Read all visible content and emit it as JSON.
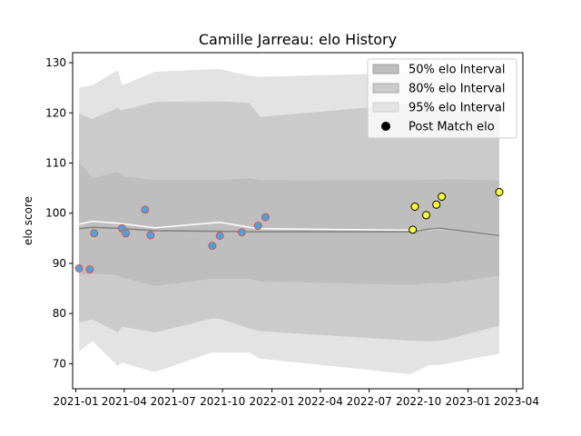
{
  "chart_data": {
    "type": "line",
    "title": "Camille Jarreau: elo History",
    "xlabel": "",
    "ylabel": "elo score",
    "xlim": [
      "2020-12-26",
      "2023-04-13"
    ],
    "ylim": [
      65,
      132
    ],
    "x_ticks": [
      "2021-01",
      "2021-04",
      "2021-07",
      "2021-10",
      "2022-01",
      "2022-04",
      "2022-07",
      "2022-10",
      "2023-01",
      "2023-04"
    ],
    "y_ticks": [
      70,
      80,
      90,
      100,
      110,
      120,
      130
    ],
    "legend": {
      "position": "top-right",
      "entries": [
        "50% elo Interval",
        "80% elo Interval",
        "95% elo Interval",
        "Post Match elo"
      ]
    },
    "band_x": [
      "2021-01-07",
      "2021-02-01",
      "2021-03-20",
      "2021-03-28",
      "2021-05-28",
      "2021-09-10",
      "2021-09-26",
      "2021-11-20",
      "2021-12-10",
      "2022-09-15",
      "2022-10-20",
      "2022-11-08",
      "2022-11-22",
      "2023-02-28"
    ],
    "bands": [
      {
        "name": "95% elo Interval",
        "color": "#e3e3e3",
        "upper": [
          125.0,
          125.5,
          128.5,
          125.5,
          128.2,
          128.7,
          128.7,
          127.4,
          127.2,
          128.0,
          128.0,
          128.0,
          128.0,
          128.0
        ],
        "lower": [
          72.5,
          74.5,
          69.5,
          70.2,
          68.3,
          72.2,
          72.2,
          72.2,
          71.0,
          67.9,
          69.7,
          69.7,
          70.0,
          72.0
        ]
      },
      {
        "name": "80% elo Interval",
        "color": "#cbcbcb",
        "upper": [
          119.8,
          118.8,
          121.0,
          120.5,
          122.2,
          122.3,
          122.3,
          122.0,
          119.2,
          121.8,
          121.7,
          121.7,
          121.6,
          121.5
        ],
        "lower": [
          78.2,
          78.8,
          76.3,
          77.4,
          76.2,
          79.0,
          79.0,
          77.0,
          76.5,
          74.6,
          74.5,
          74.6,
          74.8,
          77.6
        ]
      },
      {
        "name": "50% elo Interval",
        "color": "#bebebe",
        "upper": [
          110.2,
          107.0,
          108.2,
          107.4,
          106.6,
          106.6,
          106.6,
          107.0,
          106.6,
          106.5,
          106.7,
          106.7,
          106.8,
          106.5
        ],
        "lower": [
          87.8,
          87.9,
          87.7,
          87.2,
          85.5,
          86.9,
          86.9,
          86.9,
          86.4,
          85.7,
          86.0,
          86.1,
          86.1,
          87.5
        ]
      }
    ],
    "series": [
      {
        "x": [
          "2021-01-07",
          "2021-02-01",
          "2021-03-20",
          "2021-05-28",
          "2021-09-26",
          "2021-11-20",
          "2021-12-10",
          "2022-09-15",
          "2022-10-20",
          "2022-11-08",
          "2023-02-28"
        ],
        "values": [
          97.8,
          98.4,
          98.0,
          97.1,
          98.2,
          97.2,
          96.9,
          96.6,
          96.7,
          96.9,
          95.7
        ],
        "color": "#ffffff"
      },
      {
        "x": [
          "2021-01-07",
          "2021-02-01",
          "2021-03-20",
          "2021-05-28",
          "2021-09-26",
          "2021-11-20",
          "2022-09-15",
          "2022-10-20",
          "2022-11-08",
          "2023-02-28"
        ],
        "values": [
          96.9,
          97.2,
          97.0,
          96.5,
          96.4,
          96.3,
          96.3,
          96.8,
          97.0,
          95.6
        ],
        "color": "#808080"
      }
    ],
    "points": [
      {
        "x": "2021-01-07",
        "y": 89.0,
        "color": "#4aa3df"
      },
      {
        "x": "2021-01-27",
        "y": 88.8,
        "color": "#4aa3df"
      },
      {
        "x": "2021-02-04",
        "y": 96.0,
        "color": "#4aa3df"
      },
      {
        "x": "2021-03-28",
        "y": 97.0,
        "color": "#4aa3df"
      },
      {
        "x": "2021-04-04",
        "y": 96.0,
        "color": "#4aa3df"
      },
      {
        "x": "2021-05-10",
        "y": 100.7,
        "color": "#4aa3df"
      },
      {
        "x": "2021-05-20",
        "y": 95.6,
        "color": "#4aa3df"
      },
      {
        "x": "2021-09-12",
        "y": 93.5,
        "color": "#4aa3df"
      },
      {
        "x": "2021-09-26",
        "y": 95.5,
        "color": "#4aa3df"
      },
      {
        "x": "2021-11-06",
        "y": 96.2,
        "color": "#4aa3df"
      },
      {
        "x": "2021-12-06",
        "y": 97.5,
        "color": "#4aa3df"
      },
      {
        "x": "2021-12-20",
        "y": 99.2,
        "color": "#4aa3df"
      },
      {
        "x": "2022-09-20",
        "y": 96.7,
        "color": "#ffff33"
      },
      {
        "x": "2022-09-24",
        "y": 101.3,
        "color": "#ffff33"
      },
      {
        "x": "2022-10-15",
        "y": 99.6,
        "color": "#ffff33"
      },
      {
        "x": "2022-11-03",
        "y": 101.7,
        "color": "#ffff33"
      },
      {
        "x": "2022-11-13",
        "y": 103.3,
        "color": "#ffff33"
      },
      {
        "x": "2023-02-28",
        "y": 104.2,
        "color": "#ffff33"
      }
    ],
    "colors": {
      "marker_edge_historical": "#e05050",
      "marker_edge_recent": "#000000"
    }
  }
}
